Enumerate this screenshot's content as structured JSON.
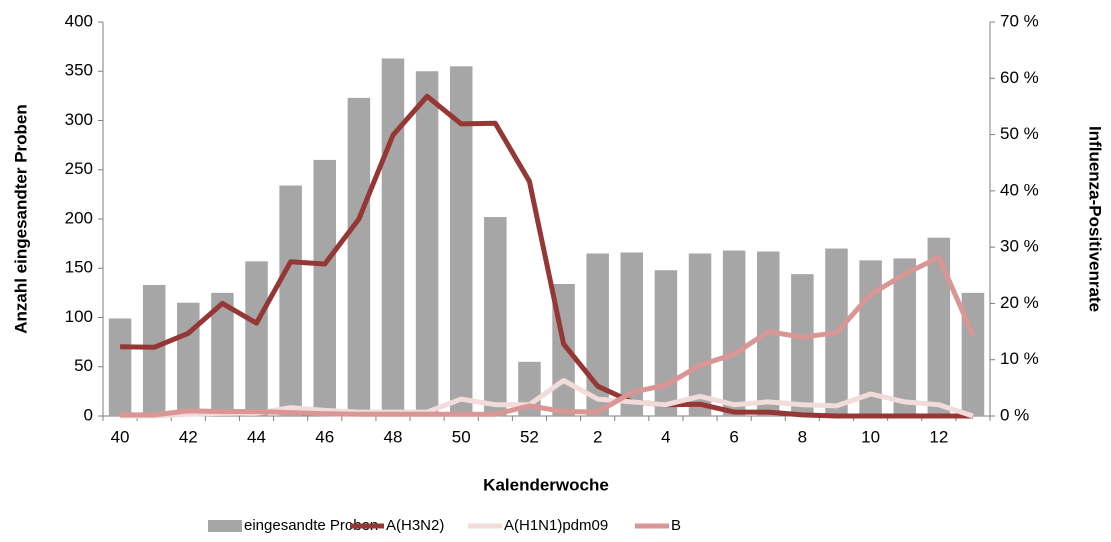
{
  "chart_data": {
    "type": "bar",
    "x_label": "Kalenderwoche",
    "y_label": "Anzahl eingesandter Proben",
    "y2_label": "Influenza-Positivenrate",
    "categories": [
      "40",
      null,
      "42",
      null,
      "44",
      null,
      "46",
      null,
      "48",
      null,
      "50",
      null,
      "52",
      null,
      "2",
      null,
      "4",
      null,
      "6",
      null,
      "8",
      null,
      "10",
      null,
      "12",
      null
    ],
    "ylim": [
      0,
      400
    ],
    "yticks": [
      0,
      50,
      100,
      150,
      200,
      250,
      300,
      350,
      400
    ],
    "y2lim": [
      0,
      70
    ],
    "y2ticks": [
      {
        "value": 0,
        "label": "0 %"
      },
      {
        "value": 10,
        "label": "10 %"
      },
      {
        "value": 20,
        "label": "20 %"
      },
      {
        "value": 30,
        "label": "30 %"
      },
      {
        "value": 40,
        "label": "40 %"
      },
      {
        "value": 50,
        "label": "50 %"
      },
      {
        "value": 60,
        "label": "60 %"
      },
      {
        "value": 70,
        "label": "70 %"
      }
    ],
    "legend": "bottom",
    "series": [
      {
        "name": "eingesandte Proben",
        "type": "bar",
        "color": "#a6a6a6",
        "values": [
          99,
          133,
          115,
          125,
          157,
          234,
          260,
          323,
          363,
          350,
          355,
          202,
          55,
          134,
          165,
          166,
          148,
          165,
          168,
          167,
          144,
          170,
          158,
          160,
          181,
          125
        ]
      },
      {
        "name": "A(H3N2)",
        "type": "line",
        "axis": "y2",
        "color": "#953735",
        "values": [
          12.3,
          12.2,
          14.7,
          20,
          16.5,
          27.4,
          27,
          35,
          49.9,
          56.8,
          51.9,
          52,
          41.7,
          12.8,
          5.3,
          2.5,
          2,
          2.1,
          0.7,
          0.7,
          0.2,
          0,
          0,
          0,
          0,
          0
        ]
      },
      {
        "name": "A(H1N1)pdm09",
        "type": "line",
        "axis": "y2",
        "color": "#f2dcdb",
        "values": [
          0,
          0,
          0.3,
          0.5,
          0.5,
          1.5,
          1,
          0.7,
          0.7,
          0.7,
          3,
          2,
          2,
          6.3,
          3,
          2.5,
          2,
          3.5,
          2,
          2.5,
          2,
          1.8,
          3.9,
          2.5,
          2,
          0
        ]
      },
      {
        "name": "B",
        "type": "line",
        "axis": "y2",
        "color": "#d99694",
        "values": [
          0.2,
          0.2,
          0.9,
          0.8,
          0.8,
          0.6,
          0.4,
          0.3,
          0.3,
          0.3,
          0.3,
          0.3,
          1.8,
          0.8,
          0.7,
          4.2,
          5.5,
          9,
          11,
          15,
          14,
          14.8,
          21.6,
          25.2,
          28.2,
          14.4
        ]
      }
    ]
  }
}
